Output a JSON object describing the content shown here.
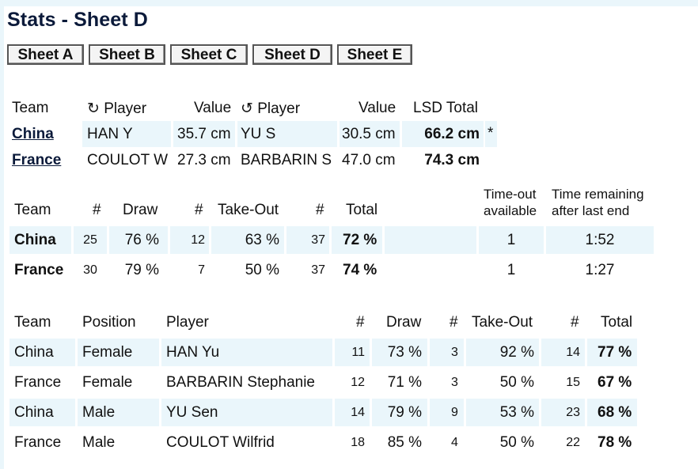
{
  "page_title": "Stats - Sheet D",
  "tabs": [
    "Sheet A",
    "Sheet B",
    "Sheet C",
    "Sheet D",
    "Sheet E"
  ],
  "lsd": {
    "headers": {
      "team": "Team",
      "player1": "↻ Player",
      "value1": "Value",
      "player2": "↺ Player",
      "value2": "Value",
      "total": "LSD Total"
    },
    "rows": [
      {
        "team": "China",
        "player1": "HAN Y",
        "value1": "35.7 cm",
        "player2": "YU S",
        "value2": "30.5 cm",
        "total": "66.2 cm",
        "mark": "*"
      },
      {
        "team": "France",
        "player1": "COULOT W",
        "value1": "27.3 cm",
        "player2": "BARBARIN S",
        "value2": "47.0 cm",
        "total": "74.3 cm",
        "mark": ""
      }
    ]
  },
  "team_stats": {
    "headers": {
      "team": "Team",
      "n1": "#",
      "draw": "Draw",
      "n2": "#",
      "takeout": "Take-Out",
      "n3": "#",
      "total": "Total",
      "timeout_line1": "Time-out",
      "timeout_line2": "available",
      "time_line1": "Time remaining",
      "time_line2": "after last end"
    },
    "rows": [
      {
        "team": "China",
        "n1": "25",
        "draw": "76 %",
        "n2": "12",
        "takeout": "63 %",
        "n3": "37",
        "total": "72 %",
        "timeout": "1",
        "time": "1:52"
      },
      {
        "team": "France",
        "n1": "30",
        "draw": "79 %",
        "n2": "7",
        "takeout": "50 %",
        "n3": "37",
        "total": "74 %",
        "timeout": "1",
        "time": "1:27"
      }
    ]
  },
  "player_stats": {
    "headers": {
      "team": "Team",
      "position": "Position",
      "player": "Player",
      "n1": "#",
      "draw": "Draw",
      "n2": "#",
      "takeout": "Take-Out",
      "n3": "#",
      "total": "Total"
    },
    "rows": [
      {
        "team": "China",
        "position": "Female",
        "player": "HAN Yu",
        "n1": "11",
        "draw": "73 %",
        "n2": "3",
        "takeout": "92 %",
        "n3": "14",
        "total": "77 %"
      },
      {
        "team": "France",
        "position": "Female",
        "player": "BARBARIN Stephanie",
        "n1": "12",
        "draw": "71 %",
        "n2": "3",
        "takeout": "50 %",
        "n3": "15",
        "total": "67 %"
      },
      {
        "team": "China",
        "position": "Male",
        "player": "YU Sen",
        "n1": "14",
        "draw": "79 %",
        "n2": "9",
        "takeout": "53 %",
        "n3": "23",
        "total": "68 %"
      },
      {
        "team": "France",
        "position": "Male",
        "player": "COULOT Wilfrid",
        "n1": "18",
        "draw": "85 %",
        "n2": "4",
        "takeout": "50 %",
        "n3": "22",
        "total": "78 %"
      }
    ]
  },
  "colors": {
    "shade": "#eaf6fb",
    "title": "#0b1a3a"
  }
}
